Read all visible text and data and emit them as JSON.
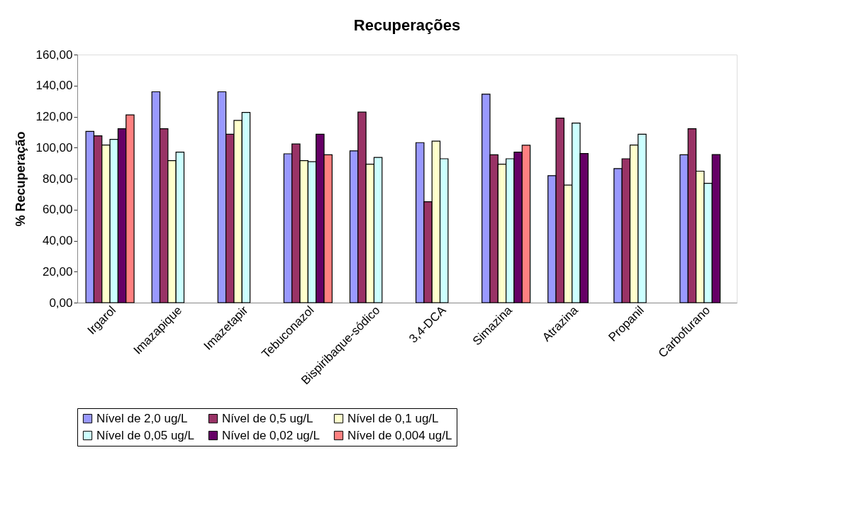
{
  "chart_data": {
    "type": "bar",
    "title": "Recuperações",
    "ylabel": "% Recuperação",
    "categories": [
      "Irgarol",
      "Imazapique",
      "Imazetapir",
      "Tebuconazol",
      "Bispiribaque-sódico",
      "3,4-DCA",
      "Simazina",
      "Atrazina",
      "Propanil",
      "Carbofurano"
    ],
    "series": [
      {
        "name": "Nível de 2,0 ug/L",
        "color": "#9999ff",
        "values": [
          110.5,
          136,
          136,
          96,
          97.9,
          103.2,
          134.5,
          81.9,
          86.5,
          95.4
        ]
      },
      {
        "name": "Nível de 0,5 ug/L",
        "color": "#993366",
        "values": [
          107.6,
          112.2,
          108.6,
          102.3,
          122.9,
          65.1,
          95.4,
          119,
          92.8,
          112.2
        ]
      },
      {
        "name": "Nível de 0,1 ug/L",
        "color": "#ffffcc",
        "values": [
          101.7,
          91.6,
          117.5,
          91.6,
          89.3,
          104.2,
          89.3,
          75.8,
          101.7,
          84.8
        ]
      },
      {
        "name": "Nível de 0,05 ug/L",
        "color": "#ccffff",
        "values": [
          105.3,
          97.1,
          122.7,
          90.9,
          93.7,
          92.8,
          92.8,
          115.8,
          108.6,
          77
        ]
      },
      {
        "name": "Nível de 0,02 ug/L",
        "color": "#660066",
        "values": [
          112.2,
          null,
          null,
          108.6,
          null,
          null,
          97.1,
          96.2,
          null,
          95.5
        ]
      },
      {
        "name": "Nível de 0,004 ug/L",
        "color": "#ff8080",
        "values": [
          121.1,
          null,
          null,
          95.4,
          null,
          null,
          101.5,
          null,
          null,
          null
        ]
      }
    ],
    "ylim": [
      0,
      160
    ],
    "yticks": [
      {
        "value": 0,
        "label": "0,00"
      },
      {
        "value": 20,
        "label": "20,00"
      },
      {
        "value": 40,
        "label": "40,00"
      },
      {
        "value": 60,
        "label": "60,00"
      },
      {
        "value": 80,
        "label": "80,00"
      },
      {
        "value": 100,
        "label": "100,00"
      },
      {
        "value": 120,
        "label": "120,00"
      },
      {
        "value": 140,
        "label": "140,00"
      },
      {
        "value": 160,
        "label": "160,00"
      }
    ],
    "grid": false,
    "legend": "bottom"
  }
}
